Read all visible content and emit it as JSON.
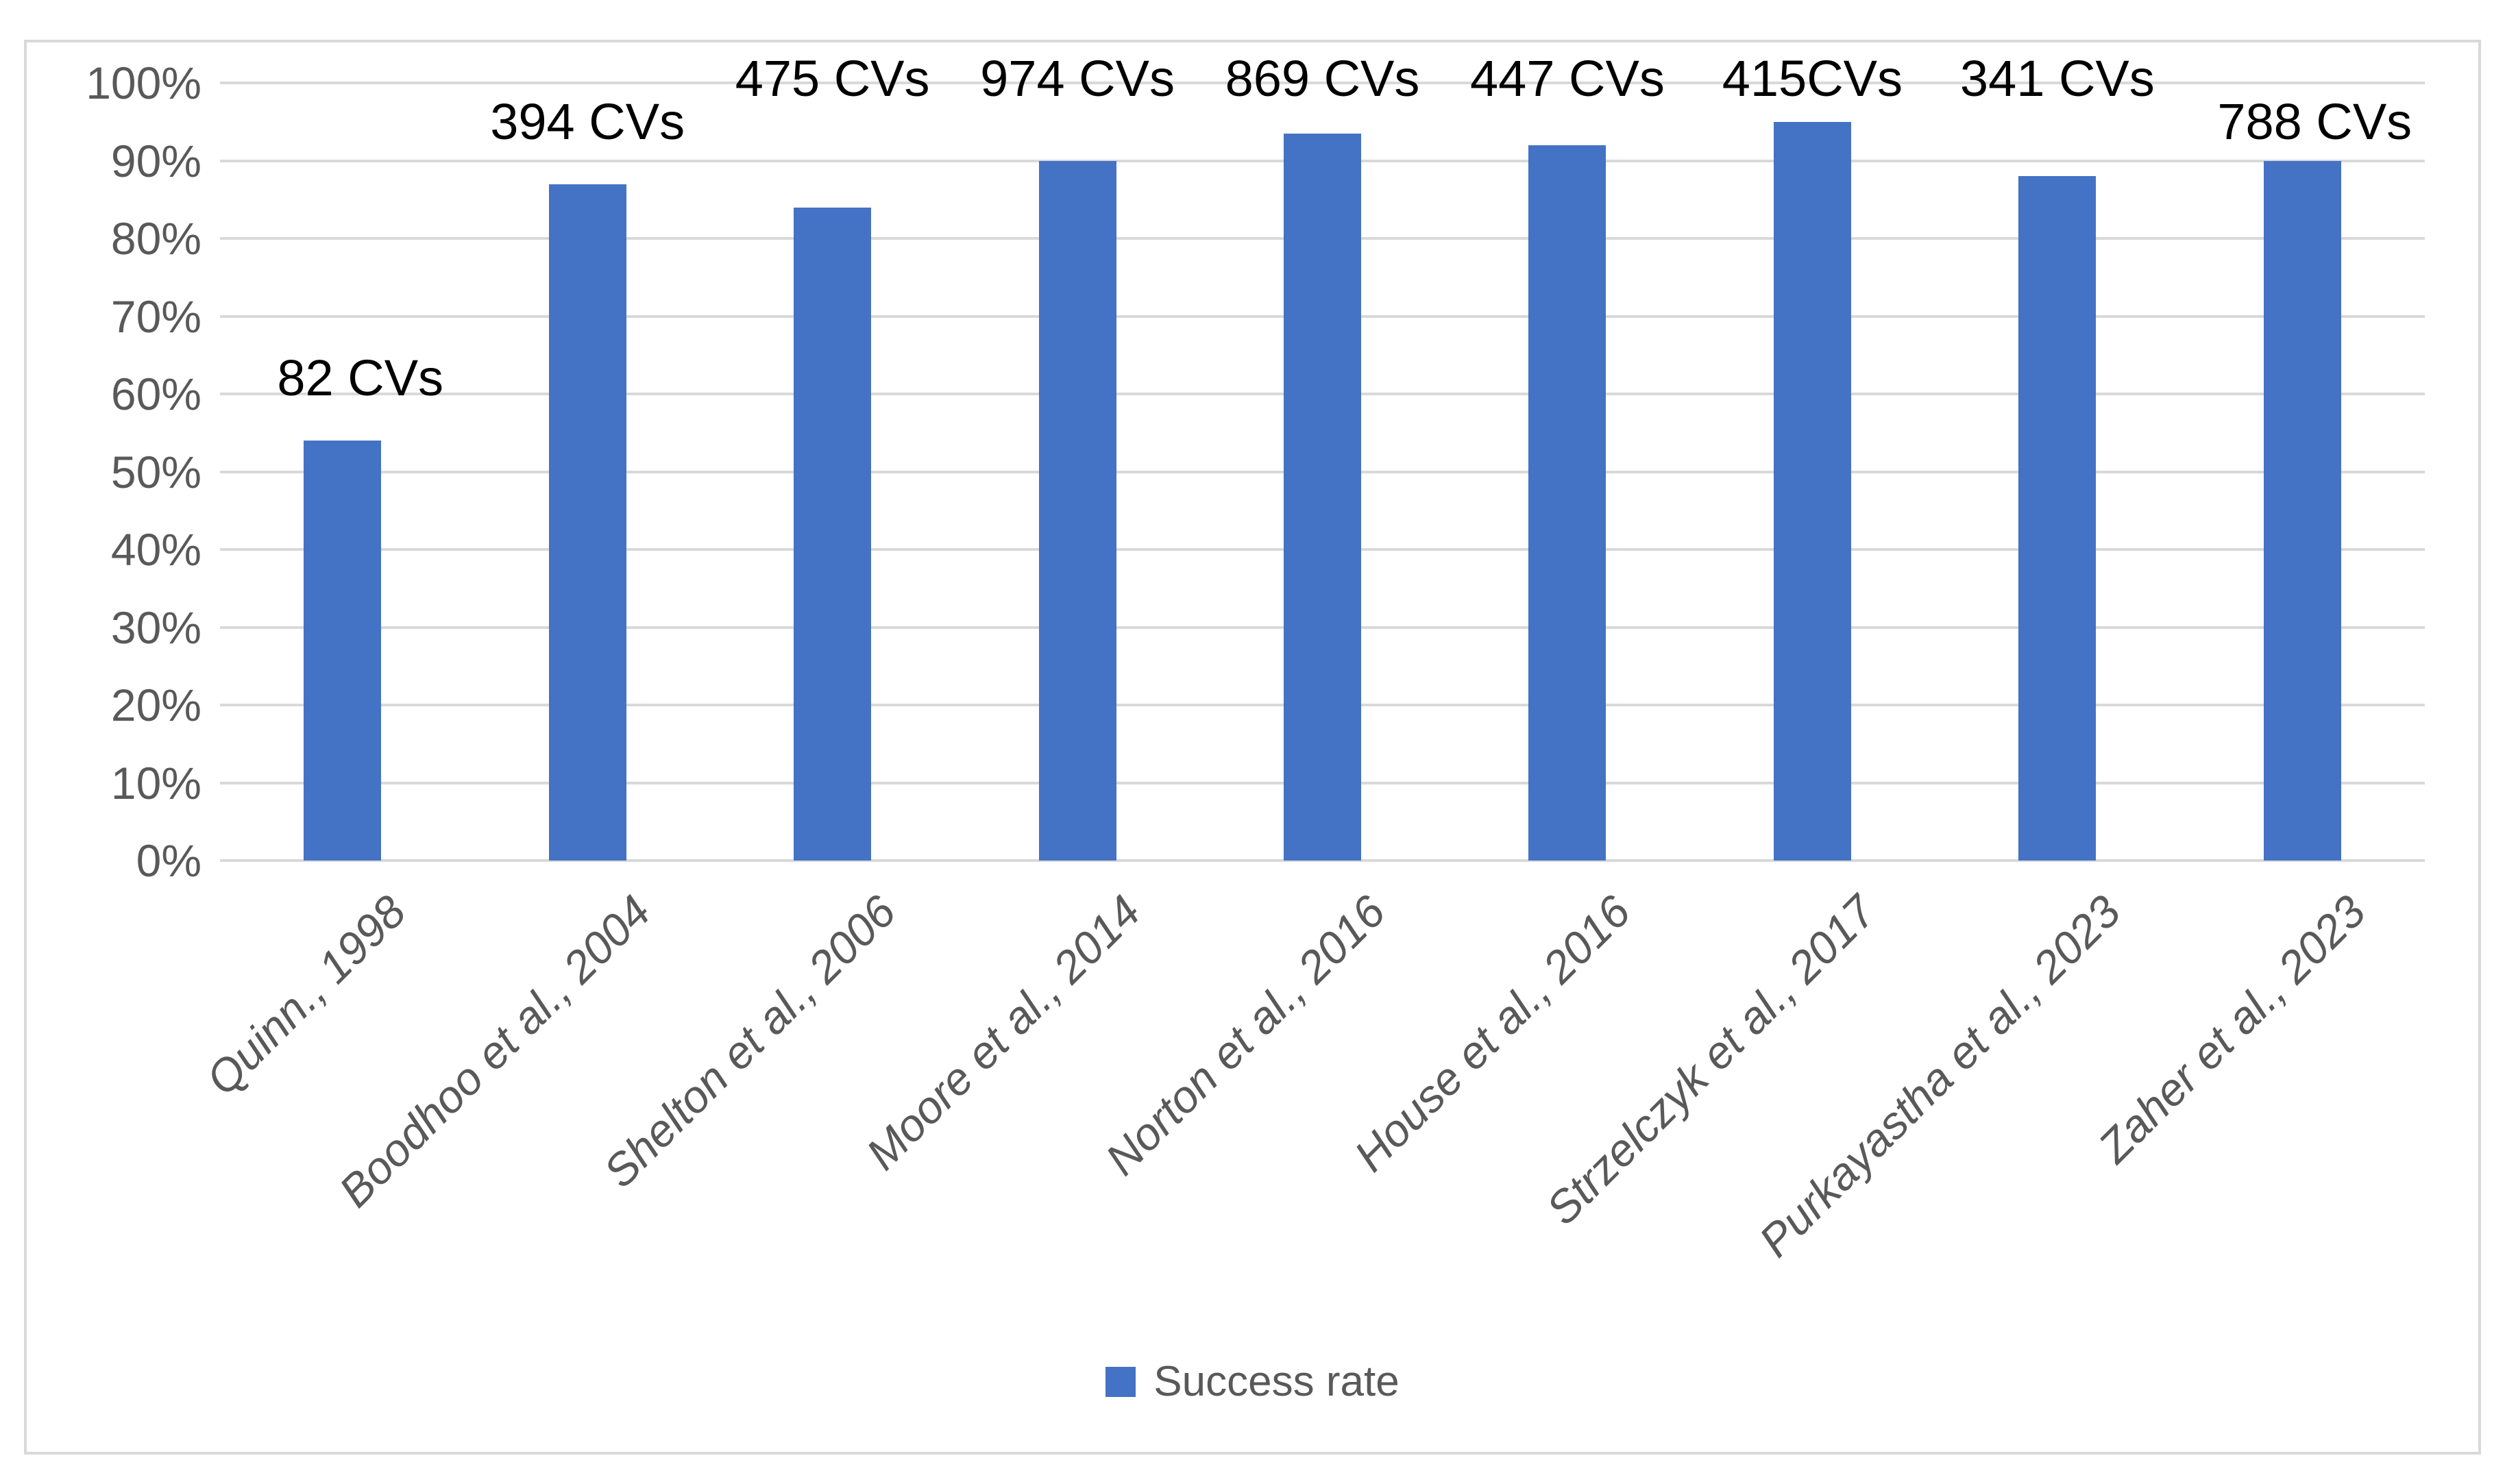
{
  "chart_data": {
    "type": "bar",
    "title": "",
    "xlabel": "",
    "ylabel": "",
    "categories": [
      "Quinn., 1998",
      "Boodhoo et al., 2004",
      "Shelton et al., 2006",
      "Moore et al., 2014",
      "Norton et al., 2016",
      "House et al., 2016",
      "Strzelczyk et al., 2017",
      "Purkayastha et al., 2023",
      "Zaher et al., 2023"
    ],
    "series": [
      {
        "name": "Success rate",
        "values": [
          54,
          87,
          84,
          90,
          93.5,
          92,
          95,
          88,
          90
        ]
      }
    ],
    "bar_labels": [
      "82 CVs",
      "394 CVs",
      "475 CVs",
      "974 CVs",
      "869 CVs",
      "447 CVs",
      "415CVs",
      "341 CVs",
      "788 CVs"
    ],
    "bar_label_y_pct": [
      62,
      95,
      100.5,
      100.5,
      100.5,
      100.5,
      100.5,
      100.5,
      95
    ],
    "bar_label_dx": [
      26,
      0,
      0,
      0,
      0,
      0,
      0,
      0,
      18
    ],
    "ylim": [
      0,
      100
    ],
    "ytick_labels_top_to_bottom": [
      "100%",
      "90%",
      "80%",
      "70%",
      "60%",
      "50%",
      "40%",
      "30%",
      "20%",
      "10%",
      "0%"
    ],
    "grid": true,
    "legend": {
      "label": "Success rate",
      "position": "bottom"
    },
    "colors": {
      "bar": "#4472C4",
      "gridline": "#D9D9D9",
      "frame_border": "#D9D9D9",
      "axis_text": "#595959",
      "data_label": "#000000",
      "background": "#FFFFFF"
    }
  }
}
